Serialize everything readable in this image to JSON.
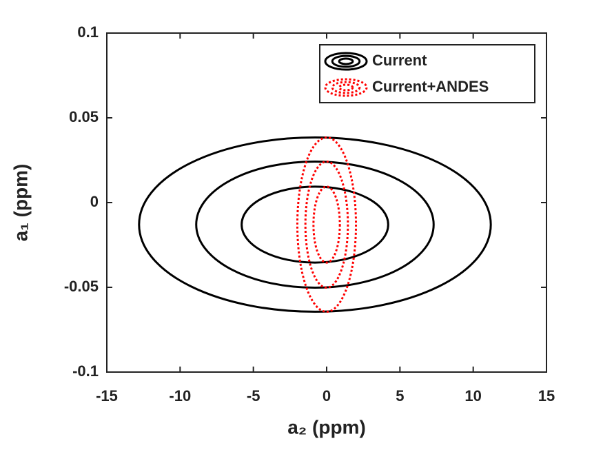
{
  "chart_data": {
    "type": "contour",
    "xlabel": "a₂ (ppm)",
    "ylabel": "a₁ (ppm)",
    "xlim": [
      -15,
      15
    ],
    "ylim": [
      -0.1,
      0.1
    ],
    "xticks": [
      -15,
      -10,
      -5,
      0,
      5,
      10,
      15
    ],
    "yticks": [
      -0.1,
      -0.05,
      0,
      0.05,
      0.1
    ],
    "legend": "upper right",
    "series": [
      {
        "name": "Current",
        "color": "#000000",
        "dash": "solid",
        "ellipses": [
          {
            "cx": -0.8,
            "cy": -0.013,
            "rx": 5.0,
            "ry": 0.0224
          },
          {
            "cx": -0.8,
            "cy": -0.013,
            "rx": 8.1,
            "ry": 0.0372
          },
          {
            "cx": -0.8,
            "cy": -0.013,
            "rx": 12.0,
            "ry": 0.0514
          }
        ]
      },
      {
        "name": "Current+ANDES",
        "color": "#ff0000",
        "dash": "dotted",
        "ellipses": [
          {
            "cx": 0,
            "cy": -0.013,
            "rx": 0.9,
            "ry": 0.0224
          },
          {
            "cx": 0,
            "cy": -0.013,
            "rx": 1.45,
            "ry": 0.0372
          },
          {
            "cx": 0,
            "cy": -0.013,
            "rx": 2.0,
            "ry": 0.0514
          }
        ]
      }
    ]
  }
}
